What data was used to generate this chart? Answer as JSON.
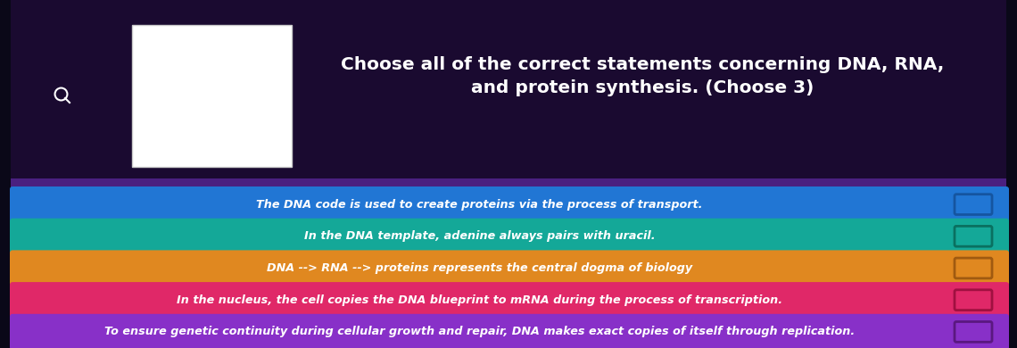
{
  "background_color": "#1e1040",
  "upper_bg": "#1a0a30",
  "title_line1": "Choose all of the correct statements concerning DNA, RNA,",
  "title_line2": "and protein synthesis. (Choose 3)",
  "title_color": "#ffffff",
  "title_fontsize": 14.5,
  "options": [
    {
      "text": "The DNA code is used to create proteins via the process of transport.",
      "color": "#2176d4",
      "shadow_color": "#1555a0",
      "text_color": "#ffffff"
    },
    {
      "text": "In the DNA template, adenine always pairs with uracil.",
      "color": "#14a898",
      "shadow_color": "#0a7060",
      "text_color": "#ffffff"
    },
    {
      "text": "DNA --> RNA --> proteins represents the central dogma of biology",
      "color": "#e08820",
      "shadow_color": "#a05a10",
      "text_color": "#ffffff"
    },
    {
      "text": "In the nucleus, the cell copies the DNA blueprint to mRNA during the process of transcription.",
      "color": "#e02868",
      "shadow_color": "#a01040",
      "text_color": "#ffffff"
    },
    {
      "text": "To ensure genetic continuity during cellular growth and repair, DNA makes exact copies of itself through replication.",
      "color": "#8830c8",
      "shadow_color": "#5a1880",
      "text_color": "#ffffff"
    }
  ],
  "figsize": [
    11.4,
    3.9
  ],
  "dpi": 100
}
